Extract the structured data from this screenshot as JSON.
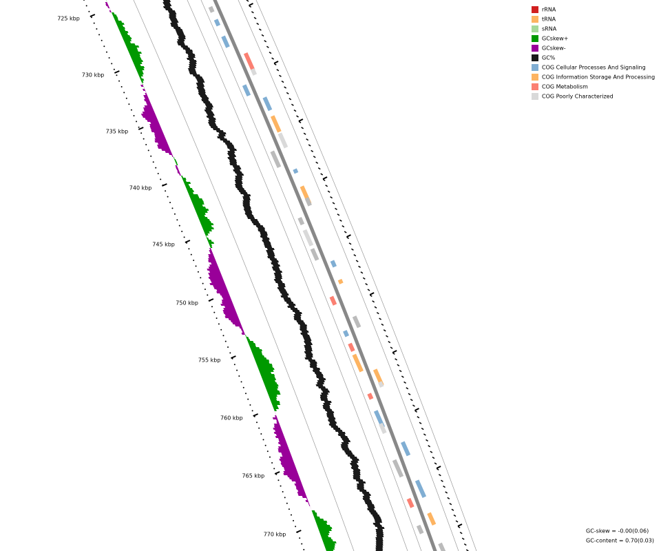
{
  "ruler": {
    "labels": [
      "725 kbp",
      "730 kbp",
      "735 kbp",
      "740 kbp",
      "745 kbp",
      "750 kbp",
      "755 kbp",
      "760 kbp",
      "765 kbp",
      "770 kbp"
    ]
  },
  "legend": {
    "items": [
      {
        "label": "rRNA",
        "color": "#d11f1f"
      },
      {
        "label": "tRNA",
        "color": "#fdb462"
      },
      {
        "label": "sRNA",
        "color": "#a6d99b"
      },
      {
        "label": "GCskew+",
        "color": "#009900"
      },
      {
        "label": "GCskew-",
        "color": "#990099"
      },
      {
        "label": "GC%",
        "color": "#1a1a1a"
      },
      {
        "label": "COG Cellular Processes And Signaling",
        "color": "#80aed3"
      },
      {
        "label": "COG Information Storage And Processing",
        "color": "#fdb462"
      },
      {
        "label": "COG Metabolism",
        "color": "#fb8072"
      },
      {
        "label": "COG Poorly Characterized",
        "color": "#d9d9d9"
      }
    ]
  },
  "footer": {
    "gc_skew": "GC-skew = -0.00(0.06)",
    "gc_content": "GC-content = 0.70(0.03)"
  }
}
